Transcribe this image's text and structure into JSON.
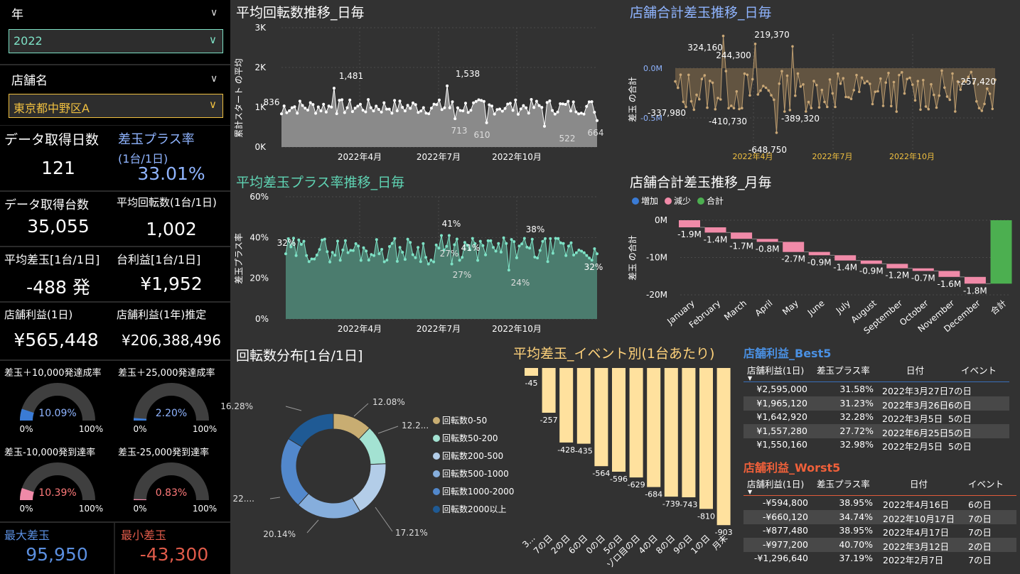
{
  "filters": {
    "year": {
      "label": "年",
      "value": "2022",
      "accent": "#7ee2c6"
    },
    "store": {
      "label": "店舗名",
      "value": "東京都中野区A",
      "accent": "#f0c040"
    }
  },
  "kpis": {
    "days": {
      "label": "データ取得日数",
      "value": "121"
    },
    "plus_rate": {
      "label": "差玉プラス率",
      "sublabel": "(1台/1日)",
      "value": "33.01%",
      "color": "#8fb4ff"
    },
    "machines": {
      "label": "データ取得台数",
      "value": "35,055"
    },
    "avg_spins": {
      "label": "平均回転数(1台/1日)",
      "value": "1,002"
    },
    "avg_diff": {
      "label": "平均差玉[1台/1日]",
      "value": "-488 発"
    },
    "machine_profit": {
      "label": "台利益[1台/1日]",
      "value": "¥1,952"
    },
    "store_profit_day": {
      "label": "店舗利益(1日)",
      "value": "¥565,448"
    },
    "store_profit_year": {
      "label": "店舗利益(1年)推定",
      "value": "¥206,388,496"
    },
    "max_diff": {
      "label": "最大差玉",
      "value": "95,950",
      "color": "#5b8fe0"
    },
    "min_diff": {
      "label": "最小差玉",
      "value": "-43,300",
      "color": "#e05b4a"
    }
  },
  "gauges": [
    {
      "label": "差玉＋10,000発達成率",
      "value": "10.09%",
      "fraction": 0.1009,
      "color": "#3a7bd5",
      "text_color": "#8fb4ff",
      "min": "0%",
      "max": "100%"
    },
    {
      "label": "差玉＋25,000発達成率",
      "value": "2.20%",
      "fraction": 0.022,
      "color": "#3a7bd5",
      "text_color": "#8fb4ff",
      "min": "0%",
      "max": "100%"
    },
    {
      "label": "差玉-10,000発到達率",
      "value": "10.39%",
      "fraction": 0.1039,
      "color": "#f08aa8",
      "text_color": "#ff7a7a",
      "min": "0%",
      "max": "100%"
    },
    {
      "label": "差玉-25,000発到達率",
      "value": "0.83%",
      "fraction": 0.0083,
      "color": "#f08aa8",
      "text_color": "#ff7a7a",
      "min": "0%",
      "max": "100%"
    }
  ],
  "charts": {
    "spins_title": "平均回転数推移_日毎",
    "diff_daily_title": "店舗合計差玉推移_日毎",
    "plusrate_title": "平均差玉プラス率推移_日毎",
    "diff_monthly_title": "店舗合計差玉推移_月毎",
    "distribution_title": "回転数分布[1台/1日]",
    "event_title": "平均差玉_イベント別(1台あたり)"
  },
  "chart_data": [
    {
      "type": "area",
      "ylabel": "累計スタート の平均",
      "ylim": [
        0,
        3000
      ],
      "yticks": [
        "0K",
        "1K",
        "2K",
        "3K"
      ],
      "xticks": [
        "2022年4月",
        "2022年7月",
        "2022年10月"
      ],
      "annotations": [
        "836",
        "1,481",
        "1,538",
        "713",
        "610",
        "522",
        "664"
      ],
      "x_range": [
        "2022-02",
        "2022-12"
      ]
    },
    {
      "type": "area",
      "ylabel": "差玉 の合計",
      "yticks": [
        "0.0M",
        "-0.5M"
      ],
      "xticks": [
        "2022年4月",
        "2022年7月",
        "2022年10月"
      ],
      "annotations": [
        "324,160",
        "244,300",
        "219,370",
        "-337,980",
        "-410,730",
        "-389,320",
        "-648,750",
        "-257,420"
      ]
    },
    {
      "type": "area",
      "ylabel": "差玉プラス率",
      "ylim": [
        0,
        60
      ],
      "yticks": [
        "0%",
        "20%",
        "40%",
        "60%"
      ],
      "xticks": [
        "2022年4月",
        "2022年7月",
        "2022年10月"
      ],
      "annotations": [
        "32%",
        "41%",
        "27%",
        "41%",
        "27%",
        "38%",
        "24%",
        "32%"
      ]
    },
    {
      "type": "bar",
      "subtype": "waterfall",
      "ylabel": "差玉 の合計",
      "ylim": [
        -20,
        0
      ],
      "yticks": [
        "0M",
        "-10M",
        "-20M"
      ],
      "legend": [
        {
          "name": "増加",
          "color": "#3a7bd5"
        },
        {
          "name": "減少",
          "color": "#f08aa8"
        },
        {
          "name": "合計",
          "color": "#4caf50"
        }
      ],
      "categories": [
        "January",
        "February",
        "March",
        "April",
        "May",
        "June",
        "July",
        "August",
        "September",
        "October",
        "November",
        "December",
        "合計"
      ],
      "values": [
        -1.9,
        -1.4,
        -1.7,
        -0.8,
        -2.7,
        -0.9,
        -1.4,
        -0.9,
        -1.2,
        -0.7,
        -1.6,
        -1.8,
        -17.0
      ],
      "labels": [
        "-1.9M",
        "-1.4M",
        "-1.7M",
        "-0.8M",
        "-2.7M",
        "-0.9M",
        "-1.4M",
        "-0.9M",
        "-1.2M",
        "-0.7M",
        "-1.6M",
        "-1.8M"
      ]
    },
    {
      "type": "pie",
      "subtype": "donut",
      "categories": [
        "回転数0-50",
        "回転数50-200",
        "回転数200-500",
        "回転数500-1000",
        "回転数1000-2000",
        "回転数2000以上"
      ],
      "values": [
        12.08,
        12.2,
        17.21,
        20.14,
        22.0,
        16.28
      ],
      "labels": [
        "12.08%",
        "12.2...",
        "17.21%",
        "20.14%",
        "22....",
        "16.28%"
      ],
      "colors": [
        "#c8ad72",
        "#a3e2d2",
        "#b3cde8",
        "#86aedc",
        "#5288cc",
        "#1f5a94"
      ]
    },
    {
      "type": "bar",
      "categories": [
        "3...",
        "7の日",
        "2の日",
        "6の日",
        "0の日",
        "5の日",
        "ゾロ目の日",
        "4の日",
        "8の日",
        "9の日",
        "1の日",
        "月末"
      ],
      "values": [
        -45,
        -257,
        -428,
        -435,
        -564,
        -596,
        -629,
        -684,
        -739,
        -743,
        -810,
        -903
      ],
      "color": "#ffe19e"
    }
  ],
  "best5": {
    "title": "店舗利益_Best5",
    "headers": [
      "店舗利益(1日)",
      "差玉プラス率",
      "日付",
      "イベント"
    ],
    "rows": [
      [
        "¥2,595,000",
        "31.58%",
        "2022年3月27日",
        "7の日"
      ],
      [
        "¥1,965,120",
        "31.23%",
        "2022年3月26日",
        "6の日"
      ],
      [
        "¥1,642,920",
        "32.28%",
        "2022年3月5日",
        "5の日"
      ],
      [
        "¥1,557,280",
        "27.72%",
        "2022年6月25日",
        "5の日"
      ],
      [
        "¥1,550,160",
        "32.98%",
        "2022年2月5日",
        "5の日"
      ]
    ]
  },
  "worst5": {
    "title": "店舗利益_Worst5",
    "headers": [
      "店舗利益(1日)",
      "差玉プラス率",
      "日付",
      "イベント"
    ],
    "rows": [
      [
        "-¥594,800",
        "38.95%",
        "2022年4月16日",
        "6の日"
      ],
      [
        "-¥660,120",
        "34.74%",
        "2022年10月17日",
        "7の日"
      ],
      [
        "-¥877,480",
        "38.95%",
        "2022年4月17日",
        "7の日"
      ],
      [
        "-¥977,200",
        "40.70%",
        "2022年3月12日",
        "2の日"
      ],
      [
        "-¥1,296,640",
        "37.19%",
        "2022年2月7日",
        "7の日"
      ]
    ]
  }
}
